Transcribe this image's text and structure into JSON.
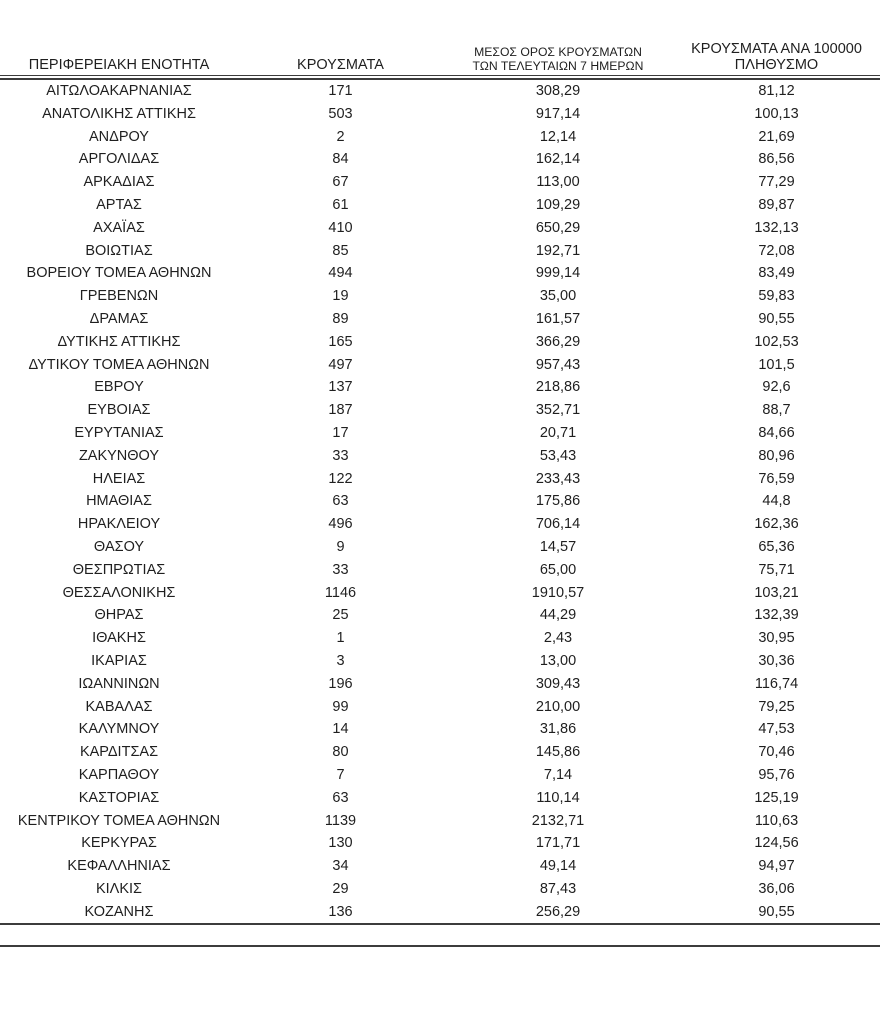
{
  "page": {
    "background": "#ffffff",
    "text_color": "#1f1f1f",
    "rule_color": "#3c3c3c"
  },
  "table": {
    "headers": {
      "region": "ΠΕΡΙΦΕΡΕΙΑΚΗ ΕΝΟΤΗΤΑ",
      "cases": "ΚΡΟΥΣΜΑΤΑ",
      "avg7_line1": "ΜΕΣΟΣ ΟΡΟΣ ΚΡΟΥΣΜΑΤΩΝ",
      "avg7_line2": "ΤΩΝ ΤΕΛΕΥΤΑΙΩΝ 7 ΗΜΕΡΩΝ",
      "per100k_line1": "ΚΡΟΥΣΜΑΤΑ ΑΝΑ 100000",
      "per100k_line2": "ΠΛΗΘΥΣΜΟ"
    },
    "rows": [
      {
        "region": "ΑΙΤΩΛΟΑΚΑΡΝΑΝΙΑΣ",
        "cases": "171",
        "avg_7day": "308,29",
        "per_100k": "81,12"
      },
      {
        "region": "ΑΝΑΤΟΛΙΚΗΣ ΑΤΤΙΚΗΣ",
        "cases": "503",
        "avg_7day": "917,14",
        "per_100k": "100,13"
      },
      {
        "region": "ΑΝΔΡΟΥ",
        "cases": "2",
        "avg_7day": "12,14",
        "per_100k": "21,69"
      },
      {
        "region": "ΑΡΓΟΛΙΔΑΣ",
        "cases": "84",
        "avg_7day": "162,14",
        "per_100k": "86,56"
      },
      {
        "region": "ΑΡΚΑΔΙΑΣ",
        "cases": "67",
        "avg_7day": "113,00",
        "per_100k": "77,29"
      },
      {
        "region": "ΑΡΤΑΣ",
        "cases": "61",
        "avg_7day": "109,29",
        "per_100k": "89,87"
      },
      {
        "region": "ΑΧΑΪΑΣ",
        "cases": "410",
        "avg_7day": "650,29",
        "per_100k": "132,13"
      },
      {
        "region": "ΒΟΙΩΤΙΑΣ",
        "cases": "85",
        "avg_7day": "192,71",
        "per_100k": "72,08"
      },
      {
        "region": "ΒΟΡΕΙΟΥ ΤΟΜΕΑ ΑΘΗΝΩΝ",
        "cases": "494",
        "avg_7day": "999,14",
        "per_100k": "83,49"
      },
      {
        "region": "ΓΡΕΒΕΝΩΝ",
        "cases": "19",
        "avg_7day": "35,00",
        "per_100k": "59,83"
      },
      {
        "region": "ΔΡΑΜΑΣ",
        "cases": "89",
        "avg_7day": "161,57",
        "per_100k": "90,55"
      },
      {
        "region": "ΔΥΤΙΚΗΣ ΑΤΤΙΚΗΣ",
        "cases": "165",
        "avg_7day": "366,29",
        "per_100k": "102,53"
      },
      {
        "region": "ΔΥΤΙΚΟΥ ΤΟΜΕΑ ΑΘΗΝΩΝ",
        "cases": "497",
        "avg_7day": "957,43",
        "per_100k": "101,5"
      },
      {
        "region": "ΕΒΡΟΥ",
        "cases": "137",
        "avg_7day": "218,86",
        "per_100k": "92,6"
      },
      {
        "region": "ΕΥΒΟΙΑΣ",
        "cases": "187",
        "avg_7day": "352,71",
        "per_100k": "88,7"
      },
      {
        "region": "ΕΥΡΥΤΑΝΙΑΣ",
        "cases": "17",
        "avg_7day": "20,71",
        "per_100k": "84,66"
      },
      {
        "region": "ΖΑΚΥΝΘΟΥ",
        "cases": "33",
        "avg_7day": "53,43",
        "per_100k": "80,96"
      },
      {
        "region": "ΗΛΕΙΑΣ",
        "cases": "122",
        "avg_7day": "233,43",
        "per_100k": "76,59"
      },
      {
        "region": "ΗΜΑΘΙΑΣ",
        "cases": "63",
        "avg_7day": "175,86",
        "per_100k": "44,8"
      },
      {
        "region": "ΗΡΑΚΛΕΙΟΥ",
        "cases": "496",
        "avg_7day": "706,14",
        "per_100k": "162,36"
      },
      {
        "region": "ΘΑΣΟΥ",
        "cases": "9",
        "avg_7day": "14,57",
        "per_100k": "65,36"
      },
      {
        "region": "ΘΕΣΠΡΩΤΙΑΣ",
        "cases": "33",
        "avg_7day": "65,00",
        "per_100k": "75,71"
      },
      {
        "region": "ΘΕΣΣΑΛΟΝΙΚΗΣ",
        "cases": "1146",
        "avg_7day": "1910,57",
        "per_100k": "103,21"
      },
      {
        "region": "ΘΗΡΑΣ",
        "cases": "25",
        "avg_7day": "44,29",
        "per_100k": "132,39"
      },
      {
        "region": "ΙΘΑΚΗΣ",
        "cases": "1",
        "avg_7day": "2,43",
        "per_100k": "30,95"
      },
      {
        "region": "ΙΚΑΡΙΑΣ",
        "cases": "3",
        "avg_7day": "13,00",
        "per_100k": "30,36"
      },
      {
        "region": "ΙΩΑΝΝΙΝΩΝ",
        "cases": "196",
        "avg_7day": "309,43",
        "per_100k": "116,74"
      },
      {
        "region": "ΚΑΒΑΛΑΣ",
        "cases": "99",
        "avg_7day": "210,00",
        "per_100k": "79,25"
      },
      {
        "region": "ΚΑΛΥΜΝΟΥ",
        "cases": "14",
        "avg_7day": "31,86",
        "per_100k": "47,53"
      },
      {
        "region": "ΚΑΡΔΙΤΣΑΣ",
        "cases": "80",
        "avg_7day": "145,86",
        "per_100k": "70,46"
      },
      {
        "region": "ΚΑΡΠΑΘΟΥ",
        "cases": "7",
        "avg_7day": "7,14",
        "per_100k": "95,76"
      },
      {
        "region": "ΚΑΣΤΟΡΙΑΣ",
        "cases": "63",
        "avg_7day": "110,14",
        "per_100k": "125,19"
      },
      {
        "region": "ΚΕΝΤΡΙΚΟΥ ΤΟΜΕΑ ΑΘΗΝΩΝ",
        "cases": "1139",
        "avg_7day": "2132,71",
        "per_100k": "110,63"
      },
      {
        "region": "ΚΕΡΚΥΡΑΣ",
        "cases": "130",
        "avg_7day": "171,71",
        "per_100k": "124,56"
      },
      {
        "region": "ΚΕΦΑΛΛΗΝΙΑΣ",
        "cases": "34",
        "avg_7day": "49,14",
        "per_100k": "94,97"
      },
      {
        "region": "ΚΙΛΚΙΣ",
        "cases": "29",
        "avg_7day": "87,43",
        "per_100k": "36,06"
      },
      {
        "region": "ΚΟΖΑΝΗΣ",
        "cases": "136",
        "avg_7day": "256,29",
        "per_100k": "90,55"
      }
    ]
  }
}
